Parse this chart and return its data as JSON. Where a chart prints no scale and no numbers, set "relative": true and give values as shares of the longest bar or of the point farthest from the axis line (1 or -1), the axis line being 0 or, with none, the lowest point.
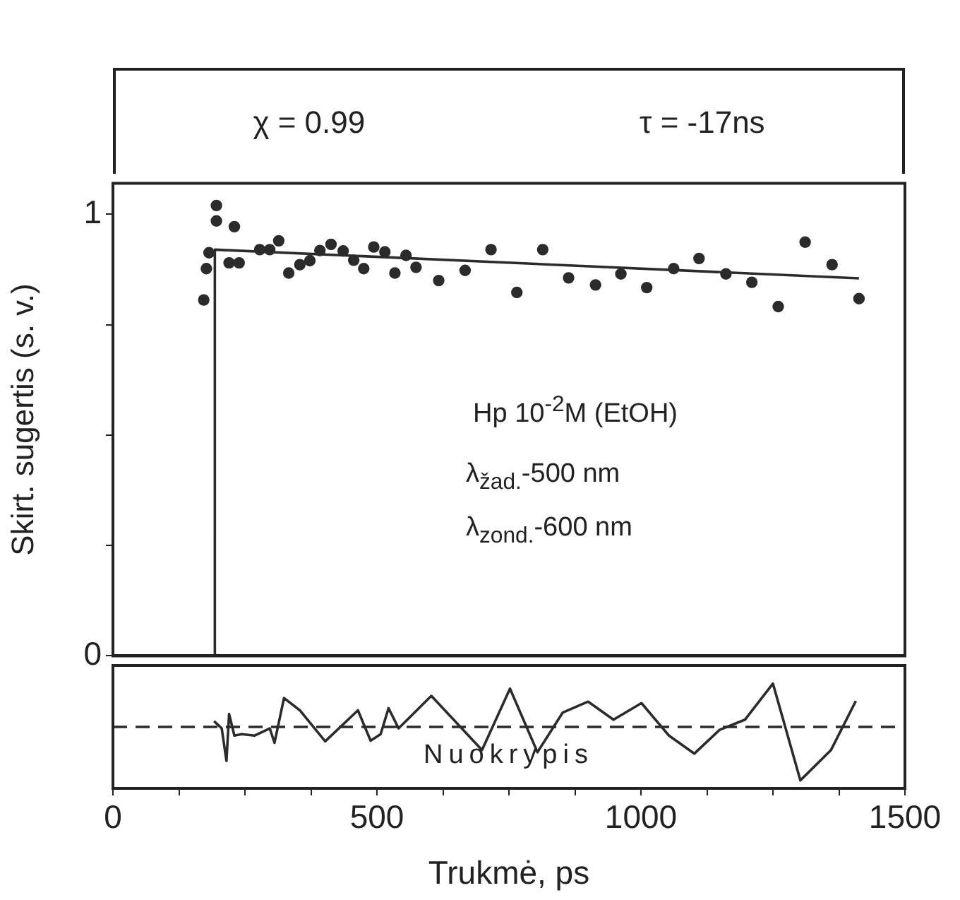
{
  "chart_data": [
    {
      "type": "other",
      "annotations": [
        "χ = 0.99",
        "τ = -17ns"
      ]
    },
    {
      "type": "scatter",
      "ylabel": "Skirt. sugertis (s. v.)",
      "xlim": [
        0,
        1500
      ],
      "ylim": [
        0,
        1.07
      ],
      "yticks": [
        0,
        {
          "value": 0.25,
          "label": null
        },
        {
          "value": 0.5,
          "label": null
        },
        {
          "value": 0.75,
          "label": null
        },
        1
      ],
      "tick_labels": "y",
      "marker": "circle",
      "annotations": [
        "Hp 10$^{-2}$M (EtOH)",
        "λ$_{žad.}$-500 nm",
        "λ$_{zond.}$-600 nm"
      ],
      "series": [
        {
          "type": "scatter",
          "color": "#2b2b2b",
          "x": [
            172,
            177,
            182,
            196,
            196,
            220,
            230,
            239,
            278,
            297,
            314,
            333,
            354,
            373,
            392,
            413,
            436,
            456,
            475,
            494,
            515,
            534,
            555,
            574,
            617,
            667,
            716,
            765,
            814,
            863,
            914,
            962,
            1011,
            1062,
            1110,
            1161,
            1210,
            1260,
            1311,
            1362,
            1413
          ],
          "values": [
            0.806,
            0.877,
            0.913,
            1.02,
            0.985,
            0.89,
            0.972,
            0.89,
            0.92,
            0.92,
            0.94,
            0.867,
            0.886,
            0.895,
            0.918,
            0.932,
            0.917,
            0.896,
            0.877,
            0.926,
            0.915,
            0.867,
            0.907,
            0.88,
            0.85,
            0.873,
            0.92,
            0.823,
            0.92,
            0.856,
            0.84,
            0.865,
            0.834,
            0.877,
            0.9,
            0.865,
            0.846,
            0.791,
            0.937,
            0.886,
            0.809
          ]
        },
        {
          "type": "line",
          "marker": "none",
          "color": "#2b2b2b",
          "x": [
            193,
            193,
            1413
          ],
          "values": [
            0,
            0.92,
            0.855
          ]
        }
      ]
    },
    {
      "type": "line",
      "xlabel": "Trukmė, ps",
      "relative": true,
      "xlim": [
        0,
        1500
      ],
      "xticks": [
        0,
        {
          "value": 125,
          "label": null
        },
        {
          "value": 250,
          "label": null
        },
        {
          "value": 375,
          "label": null
        },
        500,
        {
          "value": 625,
          "label": null
        },
        {
          "value": 750,
          "label": null
        },
        {
          "value": 875,
          "label": null
        },
        1000,
        {
          "value": 1125,
          "label": null
        },
        {
          "value": 1250,
          "label": null
        },
        {
          "value": 1375,
          "label": null
        },
        1500
      ],
      "tick_labels": "x",
      "marker": "none",
      "line_style": "solid",
      "annotations": [
        "Nuokrypis"
      ],
      "ref_lines": [
        {
          "axis": "y",
          "value": 0,
          "line_style": "dashed",
          "color": "#2b2b2b"
        }
      ],
      "series": [
        {
          "color": "#2b2b2b",
          "x": [
            191.5,
            206,
            215,
            220,
            230,
            244,
            268,
            297,
            306,
            324,
            354,
            402,
            464,
            488,
            507,
            522,
            541,
            603,
            699,
            752,
            804,
            852,
            900,
            948,
            1001,
            1053,
            1101,
            1149,
            1197,
            1250,
            1302,
            1360,
            1407
          ],
          "values": [
            0.108,
            -0.027,
            -0.635,
            0.243,
            -0.162,
            -0.135,
            -0.162,
            -0.027,
            -0.297,
            0.541,
            0.311,
            -0.27,
            0.311,
            -0.257,
            -0.135,
            0.351,
            -0.027,
            0.581,
            -0.432,
            0.716,
            -0.473,
            0.27,
            0.473,
            0.135,
            0.446,
            -0.162,
            -0.5,
            -0.054,
            0.135,
            0.811,
            -1,
            -0.432,
            0.486
          ]
        }
      ]
    }
  ]
}
